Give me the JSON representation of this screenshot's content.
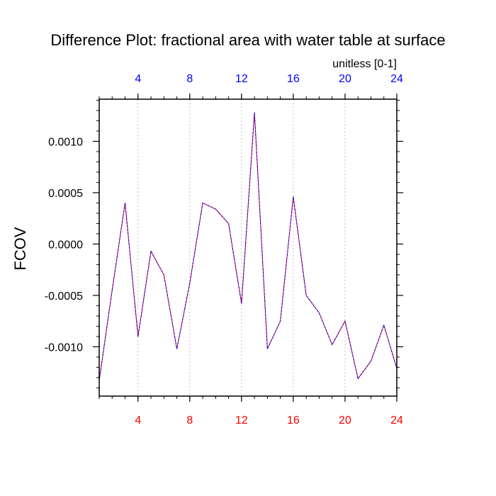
{
  "chart_data": {
    "type": "line",
    "title": "Difference Plot: fractional area with water table at surface",
    "units_label": "unitless [0-1]",
    "ylabel": "FCOV",
    "xlabel": "",
    "xlim": [
      1,
      24
    ],
    "ylim": [
      -0.00148,
      0.00141
    ],
    "x_ticks": [
      4,
      8,
      12,
      16,
      20,
      24
    ],
    "x_tick_labels": [
      "4",
      "8",
      "12",
      "16",
      "20",
      "24"
    ],
    "y_ticks": [
      0.001,
      0.0005,
      0.0,
      -0.0005,
      -0.001
    ],
    "y_tick_labels": [
      "0.0010",
      "0.0005",
      "0.0000",
      "-0.0005",
      "-0.0010"
    ],
    "grid": "vertical dashed at x ticks",
    "top_axis_color": "#0000ff",
    "bottom_axis_color": "#ff0000",
    "series": [
      {
        "color": "#0000ff",
        "overlay_color": "#ff0000",
        "style": "dashed",
        "x": [
          1,
          2,
          3,
          4,
          5,
          6,
          7,
          8,
          9,
          10,
          11,
          12,
          13,
          14,
          15,
          16,
          17,
          18,
          19,
          20,
          21,
          22,
          23,
          24
        ],
        "values": [
          -0.00133,
          -0.00045,
          0.0004,
          -0.0009,
          -7e-05,
          -0.0003,
          -0.00102,
          -0.00038,
          0.0004,
          0.00034,
          0.0002,
          -0.00058,
          0.00128,
          -0.00102,
          -0.00075,
          0.00046,
          -0.0005,
          -0.00067,
          -0.00098,
          -0.00075,
          -0.00131,
          -0.00114,
          -0.00079,
          -0.00121
        ]
      }
    ]
  }
}
